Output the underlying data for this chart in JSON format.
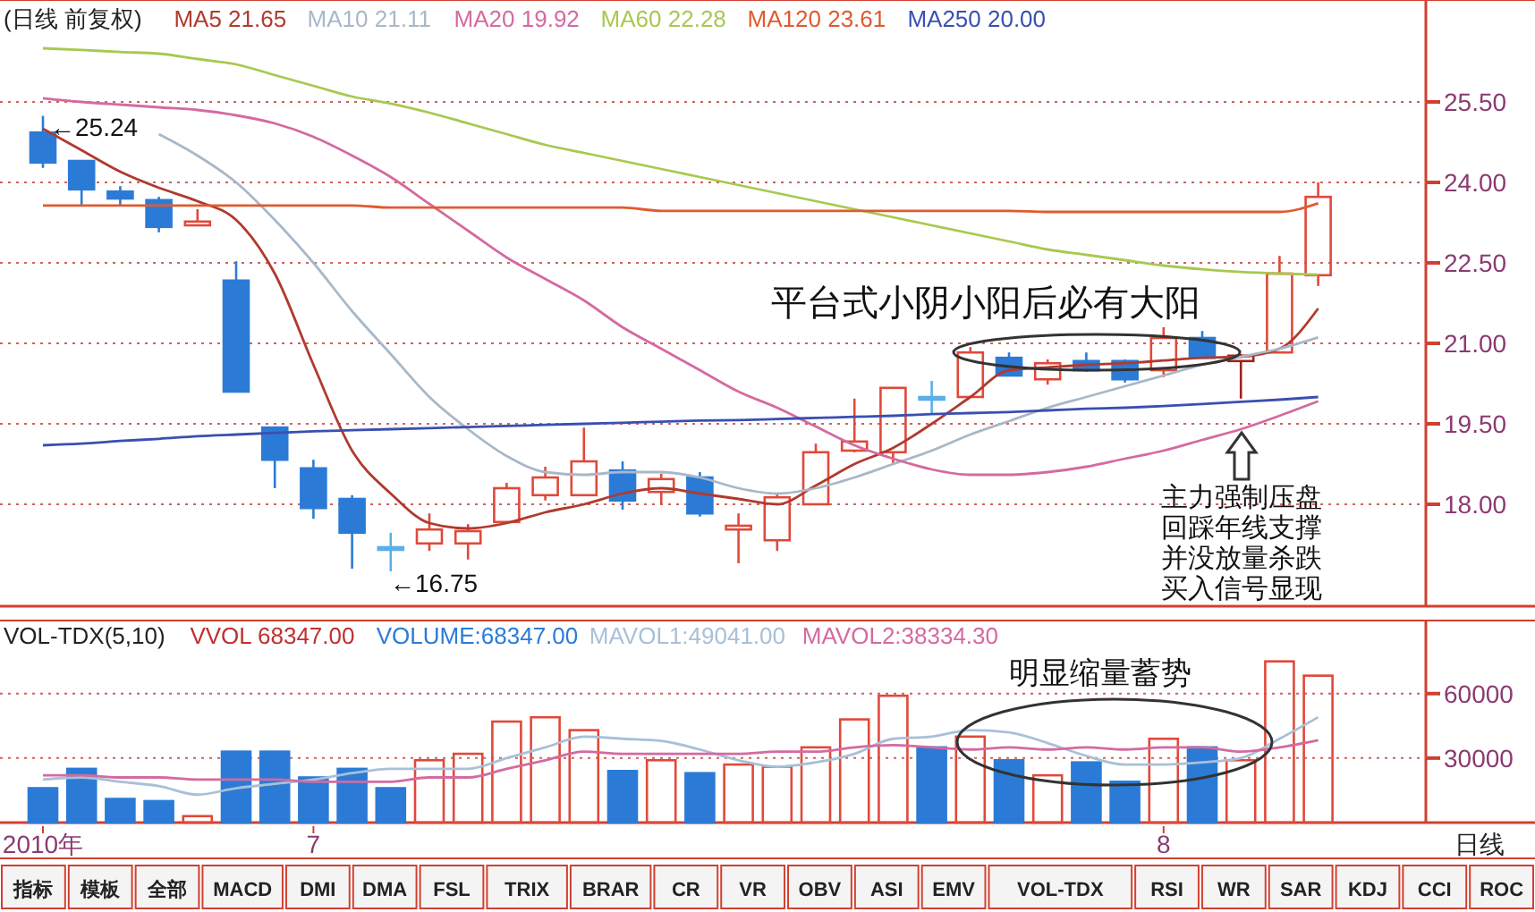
{
  "chart_data": [
    {
      "type": "candlestick",
      "title": "(日线 前复权)",
      "categories": [
        null,
        null,
        null,
        null,
        null,
        null,
        null,
        null,
        null,
        null,
        null,
        null,
        null,
        null,
        null,
        null,
        null,
        null,
        null,
        null,
        null,
        null,
        null,
        null,
        null,
        null,
        null,
        null,
        null,
        null,
        null,
        null,
        null,
        null
      ],
      "ohlc": [
        [
          24.93,
          25.24,
          24.27,
          24.37
        ],
        [
          24.4,
          24.4,
          23.57,
          23.87
        ],
        [
          23.83,
          23.93,
          23.57,
          23.7
        ],
        [
          23.67,
          23.73,
          23.07,
          23.17
        ],
        [
          23.2,
          23.5,
          23.2,
          23.27
        ],
        [
          22.17,
          22.53,
          20.1,
          20.1
        ],
        [
          19.43,
          19.43,
          18.3,
          18.83
        ],
        [
          18.67,
          18.83,
          17.73,
          17.93
        ],
        [
          18.1,
          18.17,
          16.8,
          17.47
        ],
        [
          17.2,
          17.47,
          16.75,
          17.15
        ],
        [
          17.27,
          17.83,
          17.13,
          17.53
        ],
        [
          17.27,
          17.63,
          16.97,
          17.5
        ],
        [
          17.67,
          18.4,
          17.67,
          18.3
        ],
        [
          18.17,
          18.7,
          18.07,
          18.5
        ],
        [
          18.17,
          19.43,
          18.17,
          18.8
        ],
        [
          18.63,
          18.8,
          17.9,
          18.07
        ],
        [
          18.23,
          18.57,
          18.0,
          18.47
        ],
        [
          18.5,
          18.6,
          17.77,
          17.83
        ],
        [
          17.53,
          17.83,
          16.9,
          17.6
        ],
        [
          17.33,
          18.2,
          17.13,
          18.13
        ],
        [
          18.0,
          19.13,
          18.0,
          18.97
        ],
        [
          19.0,
          19.97,
          18.97,
          19.17
        ],
        [
          18.97,
          20.17,
          18.77,
          20.17
        ],
        [
          20.0,
          20.3,
          19.67,
          19.98
        ],
        [
          20.0,
          20.93,
          20.0,
          20.83
        ],
        [
          20.73,
          20.83,
          20.4,
          20.4
        ],
        [
          20.33,
          20.7,
          20.23,
          20.63
        ],
        [
          20.67,
          20.83,
          20.47,
          20.5
        ],
        [
          20.67,
          20.7,
          20.27,
          20.33
        ],
        [
          20.5,
          21.3,
          20.37,
          21.1
        ],
        [
          21.1,
          21.23,
          20.73,
          20.73
        ],
        [
          20.67,
          20.8,
          19.97,
          20.77
        ],
        [
          20.83,
          22.63,
          20.83,
          22.3
        ],
        [
          22.27,
          24.0,
          22.07,
          23.73
        ]
      ],
      "colors": [
        "#2b7bd6",
        "#2b7bd6",
        "#2b7bd6",
        "#2b7bd6",
        "#e0493a",
        "#2b7bd6",
        "#2b7bd6",
        "#2b7bd6",
        "#2b7bd6",
        "#5ab0e8",
        "#e0493a",
        "#e0493a",
        "#e0493a",
        "#e0493a",
        "#e0493a",
        "#2b7bd6",
        "#e0493a",
        "#2b7bd6",
        "#e0493a",
        "#e0493a",
        "#e0493a",
        "#e0493a",
        "#e0493a",
        "#5ab0e8",
        "#e0493a",
        "#2b7bd6",
        "#e0493a",
        "#2b7bd6",
        "#2b7bd6",
        "#e0493a",
        "#2b7bd6",
        "#a02020",
        "#e0493a",
        "#e0493a"
      ],
      "series": [
        {
          "type": "line",
          "name": "MA5 21.65",
          "color": "#b03a2e",
          "values": [
            25.0,
            24.6,
            24.2,
            23.9,
            23.65,
            23.3,
            22.3,
            20.6,
            19.0,
            18.2,
            17.65,
            17.55,
            17.65,
            17.85,
            18.0,
            18.2,
            18.3,
            18.2,
            18.1,
            18.0,
            18.35,
            18.75,
            19.05,
            19.5,
            20.0,
            20.5,
            20.55,
            20.6,
            20.63,
            20.68,
            20.73,
            20.75,
            20.9,
            21.65
          ]
        },
        {
          "type": "line",
          "name": "MA10 21.11",
          "color": "#a8b8c8",
          "values": [
            null,
            null,
            null,
            24.9,
            24.5,
            24.0,
            23.3,
            22.5,
            21.6,
            20.8,
            20.0,
            19.4,
            18.9,
            18.6,
            18.55,
            18.6,
            18.6,
            18.5,
            18.3,
            18.2,
            18.3,
            18.5,
            18.75,
            19.0,
            19.3,
            19.55,
            19.8,
            20.0,
            20.2,
            20.4,
            20.6,
            20.75,
            20.9,
            21.11
          ]
        },
        {
          "type": "line",
          "name": "MA20 19.92",
          "color": "#d46aa0",
          "values": [
            25.57,
            25.5,
            25.45,
            25.4,
            25.35,
            25.25,
            25.1,
            24.85,
            24.5,
            24.1,
            23.6,
            23.1,
            22.6,
            22.2,
            21.8,
            21.3,
            20.9,
            20.5,
            20.1,
            19.8,
            19.45,
            19.1,
            18.85,
            18.65,
            18.55,
            18.55,
            18.6,
            18.7,
            18.85,
            19.0,
            19.2,
            19.4,
            19.65,
            19.92
          ]
        },
        {
          "type": "line",
          "name": "MA60 22.28",
          "color": "#a8c850",
          "values": [
            26.5,
            26.47,
            26.43,
            26.4,
            26.3,
            26.2,
            26.0,
            25.8,
            25.6,
            25.47,
            25.3,
            25.1,
            24.9,
            24.7,
            24.55,
            24.4,
            24.25,
            24.1,
            23.95,
            23.8,
            23.65,
            23.5,
            23.35,
            23.2,
            23.05,
            22.9,
            22.75,
            22.65,
            22.55,
            22.45,
            22.38,
            22.33,
            22.3,
            22.28
          ]
        },
        {
          "type": "line",
          "name": "MA120 23.61",
          "color": "#e05a30",
          "values": [
            23.57,
            23.57,
            23.57,
            23.57,
            23.57,
            23.57,
            23.57,
            23.57,
            23.57,
            23.53,
            23.53,
            23.53,
            23.53,
            23.53,
            23.53,
            23.53,
            23.47,
            23.47,
            23.47,
            23.47,
            23.47,
            23.47,
            23.47,
            23.47,
            23.47,
            23.47,
            23.45,
            23.45,
            23.45,
            23.45,
            23.45,
            23.45,
            23.45,
            23.61
          ]
        },
        {
          "type": "line",
          "name": "MA250 20.00",
          "color": "#3a4fb0",
          "values": [
            19.1,
            19.13,
            19.18,
            19.22,
            19.27,
            19.3,
            19.33,
            19.36,
            19.38,
            19.4,
            19.42,
            19.44,
            19.46,
            19.48,
            19.5,
            19.52,
            19.54,
            19.56,
            19.57,
            19.59,
            19.61,
            19.63,
            19.65,
            19.68,
            19.7,
            19.72,
            19.75,
            19.78,
            19.8,
            19.83,
            19.87,
            19.91,
            19.95,
            20.0
          ]
        }
      ],
      "ylim": [
        16.1,
        27.4
      ],
      "yticks": [
        {
          "value": 18,
          "label": "18.00"
        },
        {
          "value": 19.5,
          "label": "19.50"
        },
        {
          "value": 21,
          "label": "21.00"
        },
        {
          "value": 22.5,
          "label": "22.50"
        },
        {
          "value": 24,
          "label": "24.00"
        },
        {
          "value": 25.5,
          "label": "25.50"
        }
      ],
      "grid": "y",
      "legend": "top left",
      "annotations": [
        "←25.24",
        "←16.75",
        "平台式小阴小阳后必有大阳",
        "主力强制压盘",
        "回踩年线支撑",
        "并没放量杀跌",
        "买入信号显现"
      ]
    },
    {
      "type": "bar",
      "title": "VOL-TDX(5,10)",
      "subtitle": "VVOL 68347.00",
      "xlabel": "日线",
      "categories": [
        "2010年",
        null,
        null,
        null,
        null,
        null,
        null,
        "7",
        null,
        null,
        null,
        null,
        null,
        null,
        null,
        null,
        null,
        null,
        null,
        null,
        null,
        null,
        null,
        null,
        null,
        null,
        null,
        null,
        null,
        "8",
        null,
        null,
        null,
        null
      ],
      "series": [
        {
          "name": "VOLUME:68347.00",
          "colors": [
            "#2b7bd6",
            "#2b7bd6",
            "#2b7bd6",
            "#2b7bd6",
            "#e0493a",
            "#2b7bd6",
            "#2b7bd6",
            "#2b7bd6",
            "#2b7bd6",
            "#2b7bd6",
            "#e0493a",
            "#e0493a",
            "#e0493a",
            "#e0493a",
            "#e0493a",
            "#2b7bd6",
            "#e0493a",
            "#2b7bd6",
            "#e0493a",
            "#e0493a",
            "#e0493a",
            "#e0493a",
            "#e0493a",
            "#2b7bd6",
            "#e0493a",
            "#2b7bd6",
            "#e0493a",
            "#2b7bd6",
            "#2b7bd6",
            "#e0493a",
            "#2b7bd6",
            "#e0493a",
            "#e0493a",
            "#e0493a"
          ],
          "values": [
            16000,
            25000,
            11000,
            10000,
            3000,
            33000,
            33000,
            21000,
            25000,
            16000,
            29000,
            32000,
            47000,
            49000,
            43000,
            24000,
            29000,
            23000,
            27000,
            26000,
            35000,
            48000,
            59000,
            35000,
            40000,
            29000,
            22000,
            28000,
            19000,
            39000,
            35000,
            29000,
            75000,
            68347
          ]
        },
        {
          "type": "line",
          "name": "MAVOL1:49041.00",
          "color": "#a8c0d8",
          "values": [
            20000,
            21000,
            19000,
            17000,
            13000,
            16000,
            18000,
            20000,
            23000,
            25000,
            25000,
            25000,
            30000,
            35000,
            40000,
            39000,
            38000,
            34000,
            29000,
            26000,
            28000,
            32000,
            39000,
            40000,
            43000,
            42000,
            37000,
            31000,
            27000,
            27000,
            28000,
            30000,
            39000,
            49041
          ]
        },
        {
          "type": "line",
          "name": "MAVOL2:38334.30",
          "color": "#d46aa0",
          "values": [
            22000,
            22000,
            21000,
            21000,
            20000,
            20000,
            20000,
            19000,
            19000,
            19000,
            21000,
            21000,
            25000,
            29000,
            33000,
            32000,
            32000,
            32000,
            32000,
            33000,
            33000,
            35000,
            36000,
            35000,
            34000,
            35000,
            34000,
            35000,
            34000,
            35000,
            35000,
            33000,
            35000,
            38334
          ]
        }
      ],
      "ylim": [
        0,
        94000
      ],
      "yticks": [
        30000,
        60000
      ],
      "grid": "y",
      "legend": "top left",
      "tick_labels": "xy",
      "annotations": [
        "明显缩量蓄势",
        "指标",
        "模板",
        "全部",
        "MACD",
        "DMI",
        "DMA",
        "FSL",
        "TRIX",
        "BRAR",
        "CR",
        "VR",
        "OBV",
        "ASI",
        "EMV",
        "VOL-TDX",
        "RSI",
        "WR",
        "SAR",
        "KDJ",
        "CCI",
        "ROC"
      ]
    }
  ]
}
